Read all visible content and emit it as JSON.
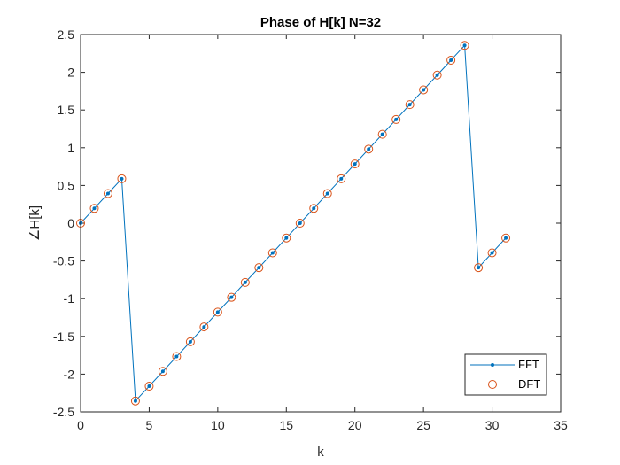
{
  "chart_data": {
    "type": "line",
    "title": "Phase of H[k] N=32",
    "xlabel": "k",
    "ylabel": "∠H[k]",
    "xlim": [
      0,
      35
    ],
    "ylim": [
      -2.5,
      2.5
    ],
    "xticks": [
      0,
      5,
      10,
      15,
      20,
      25,
      30,
      35
    ],
    "yticks": [
      -2.5,
      -2,
      -1.5,
      -1,
      -0.5,
      0,
      0.5,
      1,
      1.5,
      2,
      2.5
    ],
    "grid": false,
    "legend_position": "bottom-right",
    "x": [
      0,
      1,
      2,
      3,
      4,
      5,
      6,
      7,
      8,
      9,
      10,
      11,
      12,
      13,
      14,
      15,
      16,
      17,
      18,
      19,
      20,
      21,
      22,
      23,
      24,
      25,
      26,
      27,
      28,
      29,
      30,
      31
    ],
    "series": [
      {
        "name": "FFT",
        "style": "line-dot",
        "color": "#0072BD",
        "values": [
          0,
          0.196,
          0.393,
          0.589,
          -2.356,
          -2.16,
          -1.963,
          -1.767,
          -1.571,
          -1.374,
          -1.178,
          -0.982,
          -0.785,
          -0.589,
          -0.393,
          -0.196,
          0,
          0.196,
          0.393,
          0.589,
          0.785,
          0.982,
          1.178,
          1.374,
          1.571,
          1.767,
          1.963,
          2.16,
          2.356,
          -0.589,
          -0.393,
          -0.196
        ]
      },
      {
        "name": "DFT",
        "style": "circle",
        "color": "#D95319",
        "values": [
          0,
          0.196,
          0.393,
          0.589,
          -2.356,
          -2.16,
          -1.963,
          -1.767,
          -1.571,
          -1.374,
          -1.178,
          -0.982,
          -0.785,
          -0.589,
          -0.393,
          -0.196,
          0,
          0.196,
          0.393,
          0.589,
          0.785,
          0.982,
          1.178,
          1.374,
          1.571,
          1.767,
          1.963,
          2.16,
          2.356,
          -0.589,
          -0.393,
          -0.196
        ]
      }
    ]
  }
}
